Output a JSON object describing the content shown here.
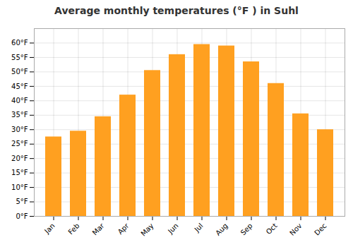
{
  "chart_data": {
    "type": "bar",
    "title": "Average monthly temperatures (°F ) in Suhl",
    "categories": [
      "Jan",
      "Feb",
      "Mar",
      "Apr",
      "May",
      "Jun",
      "Jul",
      "Aug",
      "Sep",
      "Oct",
      "Nov",
      "Dec"
    ],
    "values": [
      27.5,
      29.5,
      34.5,
      42.0,
      50.5,
      56.0,
      59.5,
      59.0,
      53.5,
      46.0,
      35.5,
      30.0
    ],
    "color": "#FFA020",
    "ylim": [
      0,
      65
    ],
    "yticks": [
      {
        "value": 0,
        "label": "0°F"
      },
      {
        "value": 5,
        "label": "5°F"
      },
      {
        "value": 10,
        "label": "10°F"
      },
      {
        "value": 15,
        "label": "15°F"
      },
      {
        "value": 20,
        "label": "20°F"
      },
      {
        "value": 25,
        "label": "25°F"
      },
      {
        "value": 30,
        "label": "30°F"
      },
      {
        "value": 35,
        "label": "35°F"
      },
      {
        "value": 40,
        "label": "40°F"
      },
      {
        "value": 45,
        "label": "45°F"
      },
      {
        "value": 50,
        "label": "50°F"
      },
      {
        "value": 55,
        "label": "55°F"
      },
      {
        "value": 60,
        "label": "60°F"
      }
    ],
    "grid": true
  }
}
